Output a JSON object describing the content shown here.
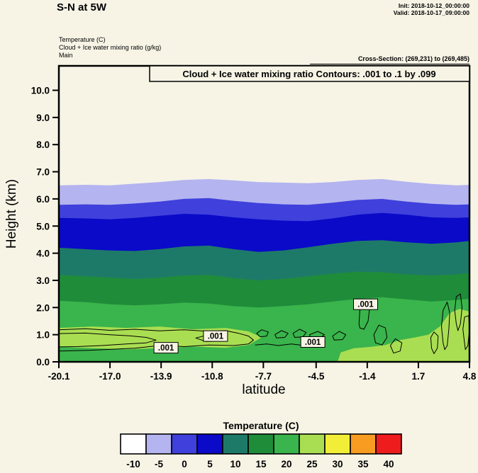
{
  "header": {
    "title": "S-N at 5W",
    "init_line": "Init: 2018-10-12_00:00:00",
    "valid_line": "Valid: 2018-10-17_09:00:00",
    "meta_lines": [
      "Temperature  (C)",
      "Cloud + Ice water mixing ratio  (g/kg)",
      "Main"
    ],
    "cross_section": "Cross-Section: (269,231) to (269,485)"
  },
  "chart_data": {
    "type": "area",
    "subtype": "filled-contour-vertical-cross-section",
    "title": "Cloud + Ice water mixing ratio Contours: .001 to .1 by .099",
    "xlabel": "latitude",
    "ylabel": "Height (km)",
    "xlim": [
      -20.1,
      4.8
    ],
    "ylim": [
      0,
      10.9
    ],
    "background": "#f7f4e6",
    "x_ticks": {
      "values": [
        -20.1,
        -17.0,
        -13.9,
        -10.8,
        -7.7,
        -4.5,
        -1.4,
        1.7,
        4.8
      ],
      "labels": [
        "-20.1",
        "-17.0",
        "-13.9",
        "-10.8",
        "-7.7",
        "-4.5",
        "-1.4",
        "1.7",
        "4.8"
      ]
    },
    "y_ticks": {
      "values": [
        0,
        1,
        2,
        3,
        4,
        5,
        6,
        7,
        8,
        9,
        10
      ],
      "labels": [
        "0.0",
        "1.0",
        "2.0",
        "3.0",
        "4.0",
        "5.0",
        "6.0",
        "7.0",
        "8.0",
        "9.0",
        "10.0"
      ]
    },
    "x_samples": [
      -20.1,
      -18.5,
      -17,
      -15.5,
      -14,
      -12.5,
      -11,
      -9.5,
      -8,
      -6.5,
      -5,
      -3.5,
      -2,
      -0.5,
      1,
      2.5,
      4,
      4.8
    ],
    "temperature_bands": [
      {
        "level_c": -10,
        "color": "#b4b4f0",
        "top_km": [
          6.5,
          6.52,
          6.5,
          6.56,
          6.62,
          6.7,
          6.73,
          6.68,
          6.62,
          6.6,
          6.58,
          6.62,
          6.7,
          6.73,
          6.63,
          6.55,
          6.5,
          6.52
        ]
      },
      {
        "level_c": -5,
        "color": "#4040dc",
        "top_km": [
          5.78,
          5.8,
          5.78,
          5.83,
          5.9,
          6.0,
          6.03,
          5.93,
          5.85,
          5.8,
          5.78,
          5.86,
          5.96,
          6.0,
          5.9,
          5.82,
          5.78,
          5.8
        ]
      },
      {
        "level_c": 0,
        "color": "#0a0ac8",
        "top_km": [
          5.3,
          5.28,
          5.25,
          5.3,
          5.38,
          5.45,
          5.42,
          5.32,
          5.25,
          5.2,
          5.18,
          5.28,
          5.42,
          5.48,
          5.42,
          5.32,
          5.3,
          5.32
        ]
      },
      {
        "level_c": 5,
        "color": "#1e7a68",
        "top_km": [
          4.2,
          4.15,
          4.1,
          4.08,
          4.15,
          4.25,
          4.28,
          4.15,
          4.05,
          4.1,
          4.22,
          4.35,
          4.45,
          4.48,
          4.4,
          4.35,
          4.4,
          4.45
        ]
      },
      {
        "level_c": 10,
        "color": "#1f8c3a",
        "top_km": [
          3.2,
          3.15,
          3.1,
          3.05,
          3.1,
          3.18,
          3.2,
          3.08,
          3.0,
          3.05,
          3.15,
          3.25,
          3.32,
          3.3,
          3.22,
          3.18,
          3.22,
          3.28
        ]
      },
      {
        "level_c": 15,
        "color": "#3ab44c",
        "top_km": [
          2.25,
          2.2,
          2.12,
          2.08,
          2.12,
          2.18,
          2.15,
          2.05,
          2.0,
          2.05,
          2.12,
          2.22,
          2.32,
          2.38,
          2.3,
          2.22,
          2.28,
          2.32
        ]
      }
    ],
    "warm_patches": [
      {
        "level_c": 20,
        "color": "#aade52",
        "points": [
          [
            -20.1,
            0.55
          ],
          [
            -20.1,
            1.25
          ],
          [
            -18,
            1.3
          ],
          [
            -16,
            1.25
          ],
          [
            -14,
            1.3
          ],
          [
            -12,
            1.2
          ],
          [
            -10,
            1.25
          ],
          [
            -8.6,
            1.12
          ],
          [
            -7.8,
            0.9
          ],
          [
            -8.6,
            0.62
          ],
          [
            -10,
            0.52
          ],
          [
            -12,
            0.56
          ],
          [
            -14,
            0.5
          ],
          [
            -16,
            0.46
          ],
          [
            -18,
            0.5
          ]
        ]
      },
      {
        "level_c": 20,
        "color": "#aade52",
        "points": [
          [
            -3.2,
            0.0
          ],
          [
            -3.0,
            0.35
          ],
          [
            -2.2,
            0.5
          ],
          [
            -1.2,
            0.55
          ],
          [
            -0.3,
            0.62
          ],
          [
            0.6,
            0.8
          ],
          [
            1.5,
            0.9
          ],
          [
            2.3,
            1.0
          ],
          [
            3.0,
            1.3
          ],
          [
            3.6,
            1.8
          ],
          [
            4.2,
            1.95
          ],
          [
            4.8,
            1.85
          ],
          [
            4.8,
            0.0
          ]
        ]
      }
    ],
    "cloud_contours": {
      "field": "Cloud + Ice water mixing ratio",
      "levels_text": ".001 to .1 by .099",
      "paths": [
        {
          "closed": false,
          "pts": [
            [
              -20.1,
              1.18
            ],
            [
              -18.5,
              1.22
            ],
            [
              -17,
              1.16
            ],
            [
              -15.5,
              1.2
            ],
            [
              -14,
              1.14
            ],
            [
              -12.5,
              1.18
            ],
            [
              -11,
              1.12
            ],
            [
              -10,
              1.15
            ],
            [
              -9.2,
              1.05
            ],
            [
              -8.6,
              0.95
            ],
            [
              -8.3,
              0.8
            ],
            [
              -8.6,
              0.66
            ],
            [
              -9.5,
              0.6
            ],
            [
              -11,
              0.62
            ],
            [
              -12.5,
              0.56
            ],
            [
              -14,
              0.6
            ],
            [
              -15.5,
              0.5
            ],
            [
              -17,
              0.46
            ],
            [
              -18.5,
              0.42
            ],
            [
              -20.1,
              0.4
            ]
          ]
        },
        {
          "closed": false,
          "pts": [
            [
              -20.1,
              1.04
            ],
            [
              -18.5,
              1.06
            ],
            [
              -17,
              1.0
            ],
            [
              -15.8,
              0.96
            ],
            [
              -14.8,
              0.9
            ],
            [
              -14.2,
              0.8
            ],
            [
              -14.8,
              0.7
            ],
            [
              -16,
              0.66
            ],
            [
              -17.5,
              0.6
            ],
            [
              -19,
              0.56
            ],
            [
              -20.1,
              0.55
            ]
          ]
        },
        {
          "closed": true,
          "pts": [
            [
              -11.8,
              0.88
            ],
            [
              -11.2,
              0.97
            ],
            [
              -10.4,
              0.95
            ],
            [
              -9.9,
              0.86
            ],
            [
              -10.3,
              0.76
            ],
            [
              -11.2,
              0.75
            ]
          ]
        },
        {
          "closed": true,
          "pts": [
            [
              -8.1,
              1.05
            ],
            [
              -7.8,
              1.18
            ],
            [
              -7.4,
              1.1
            ],
            [
              -7.5,
              0.95
            ],
            [
              -7.9,
              0.92
            ]
          ]
        },
        {
          "closed": true,
          "pts": [
            [
              -7.0,
              1.0
            ],
            [
              -6.6,
              1.15
            ],
            [
              -6.2,
              1.05
            ],
            [
              -6.4,
              0.9
            ],
            [
              -6.9,
              0.88
            ]
          ]
        },
        {
          "closed": true,
          "pts": [
            [
              -5.9,
              1.05
            ],
            [
              -5.5,
              1.2
            ],
            [
              -5.1,
              1.08
            ],
            [
              -5.3,
              0.92
            ],
            [
              -5.8,
              0.9
            ]
          ]
        },
        {
          "closed": true,
          "pts": [
            [
              -4.9,
              1.0
            ],
            [
              -4.4,
              1.12
            ],
            [
              -4.0,
              1.0
            ],
            [
              -4.3,
              0.85
            ],
            [
              -4.8,
              0.85
            ]
          ]
        },
        {
          "closed": true,
          "pts": [
            [
              -3.5,
              0.95
            ],
            [
              -3.1,
              1.12
            ],
            [
              -2.7,
              1.0
            ],
            [
              -2.9,
              0.82
            ],
            [
              -3.4,
              0.8
            ]
          ]
        },
        {
          "closed": true,
          "pts": [
            [
              -1.9,
              1.4
            ],
            [
              -1.85,
              1.9
            ],
            [
              -1.7,
              2.25
            ],
            [
              -1.35,
              2.3
            ],
            [
              -1.25,
              2.0
            ],
            [
              -1.35,
              1.5
            ],
            [
              -1.6,
              1.2
            ],
            [
              -1.85,
              1.25
            ]
          ]
        },
        {
          "closed": true,
          "pts": [
            [
              -1.0,
              1.0
            ],
            [
              -0.7,
              1.35
            ],
            [
              -0.3,
              1.25
            ],
            [
              -0.2,
              0.9
            ],
            [
              -0.5,
              0.62
            ],
            [
              -0.9,
              0.7
            ]
          ]
        },
        {
          "closed": true,
          "pts": [
            [
              0.0,
              0.6
            ],
            [
              0.3,
              0.85
            ],
            [
              0.7,
              0.7
            ],
            [
              0.6,
              0.4
            ],
            [
              0.2,
              0.32
            ]
          ]
        },
        {
          "closed": true,
          "pts": [
            [
              3.2,
              0.7
            ],
            [
              3.1,
              1.3
            ],
            [
              3.2,
              1.9
            ],
            [
              3.45,
              2.2
            ],
            [
              3.6,
              1.8
            ],
            [
              3.55,
              1.2
            ],
            [
              3.45,
              0.6
            ],
            [
              3.3,
              0.45
            ]
          ]
        },
        {
          "closed": true,
          "pts": [
            [
              4.0,
              1.4
            ],
            [
              3.9,
              1.9
            ],
            [
              4.0,
              2.4
            ],
            [
              4.25,
              2.5
            ],
            [
              4.35,
              2.0
            ],
            [
              4.25,
              1.4
            ],
            [
              4.1,
              1.15
            ]
          ]
        },
        {
          "closed": true,
          "pts": [
            [
              4.5,
              0.7
            ],
            [
              4.4,
              1.2
            ],
            [
              4.5,
              1.65
            ],
            [
              4.75,
              1.7
            ],
            [
              4.8,
              1.2
            ],
            [
              4.7,
              0.6
            ],
            [
              4.55,
              0.45
            ]
          ]
        },
        {
          "closed": true,
          "pts": [
            [
              2.5,
              0.5
            ],
            [
              2.45,
              0.9
            ],
            [
              2.65,
              1.1
            ],
            [
              2.9,
              0.95
            ],
            [
              2.85,
              0.5
            ],
            [
              2.65,
              0.3
            ]
          ]
        },
        {
          "closed": false,
          "pts": [
            [
              -8.2,
              0.62
            ],
            [
              -7.5,
              0.66
            ],
            [
              -6.8,
              0.6
            ],
            [
              -6.0,
              0.66
            ],
            [
              -5.2,
              0.6
            ],
            [
              -4.6,
              0.66
            ],
            [
              -4.1,
              0.6
            ]
          ]
        }
      ],
      "labels": [
        {
          "x": -13.6,
          "y": 0.52,
          "text": ".001"
        },
        {
          "x": -10.6,
          "y": 0.95,
          "text": ".001"
        },
        {
          "x": -4.7,
          "y": 0.73,
          "text": ".001"
        },
        {
          "x": -1.5,
          "y": 2.12,
          "text": ".001"
        }
      ]
    },
    "colorbar": {
      "title": "Temperature  (C)",
      "labels": [
        "-10",
        "-5",
        "0",
        "5",
        "10",
        "15",
        "20",
        "25",
        "30",
        "35",
        "40"
      ],
      "colors": [
        "#ffffff",
        "#b4b4f0",
        "#4040dc",
        "#0a0ac8",
        "#1e7a68",
        "#1f8c3a",
        "#3ab44c",
        "#aade52",
        "#f2ee38",
        "#f79c20",
        "#ee1c1c"
      ]
    }
  }
}
